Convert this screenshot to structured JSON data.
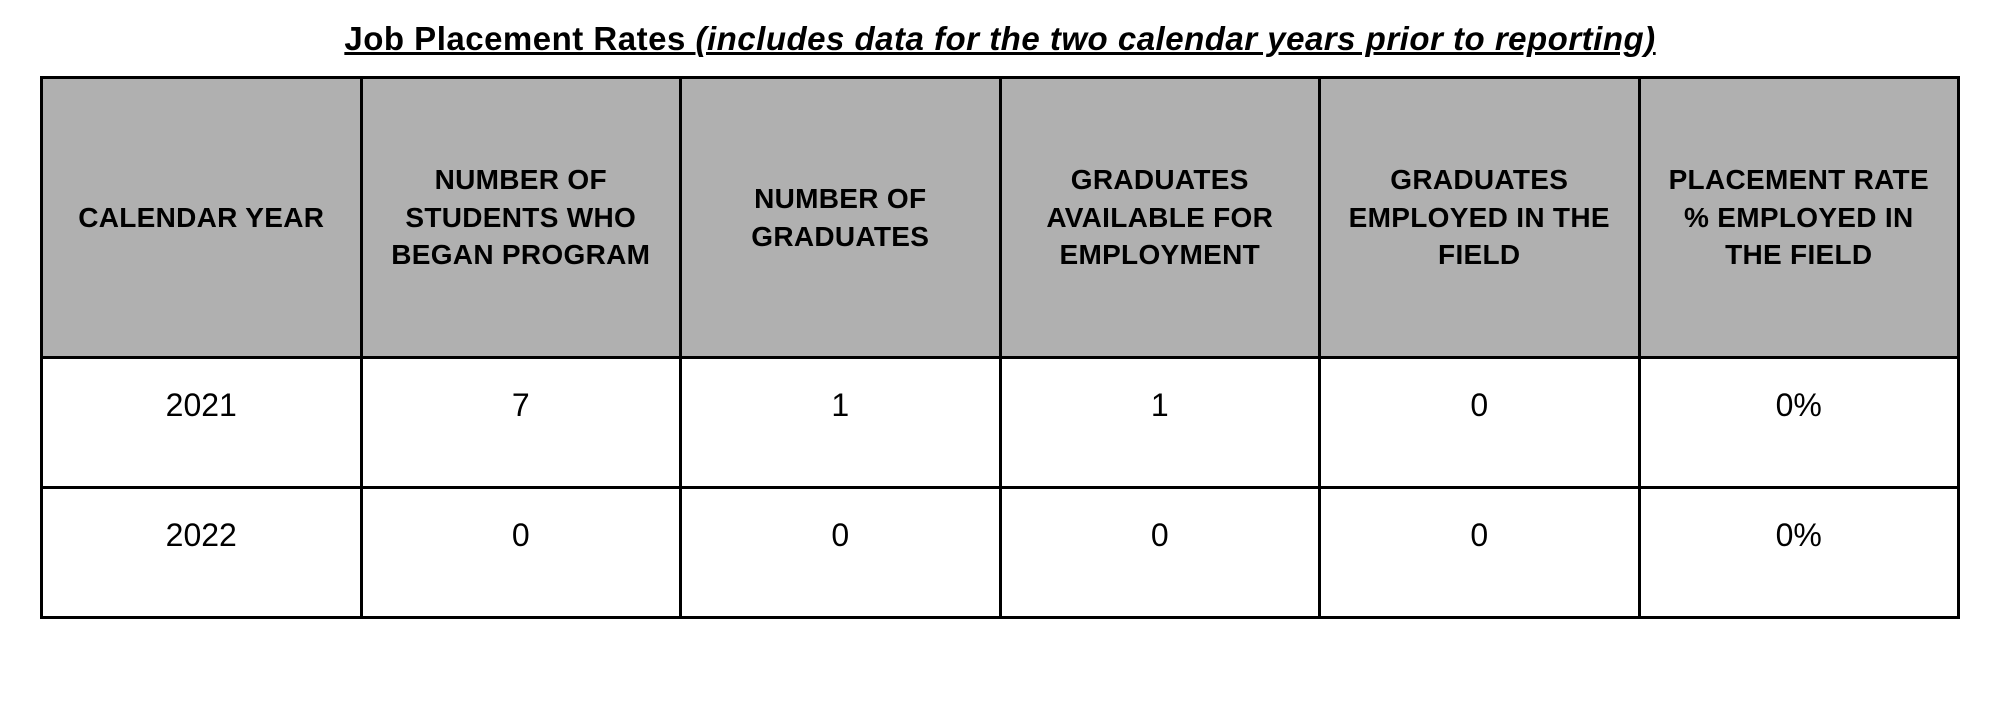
{
  "title": {
    "main": "Job Placement Rates ",
    "sub": "(includes data for the two calendar years prior to reporting) "
  },
  "table": {
    "type": "table",
    "header_bg": "#b0b0b0",
    "border_color": "#000000",
    "columns": [
      "CALENDAR YEAR",
      "NUMBER OF STUDENTS WHO BEGAN PROGRAM",
      "NUMBER OF GRADUATES",
      "GRADUATES AVAILABLE FOR EMPLOYMENT",
      "GRADUATES EMPLOYED IN THE FIELD",
      "PLACEMENT RATE % EMPLOYED IN THE FIELD"
    ],
    "rows": [
      [
        "2021",
        "7",
        "1",
        "1",
        "0",
        "0%"
      ],
      [
        "2022",
        "0",
        "0",
        "0",
        "0",
        "0%"
      ]
    ]
  }
}
